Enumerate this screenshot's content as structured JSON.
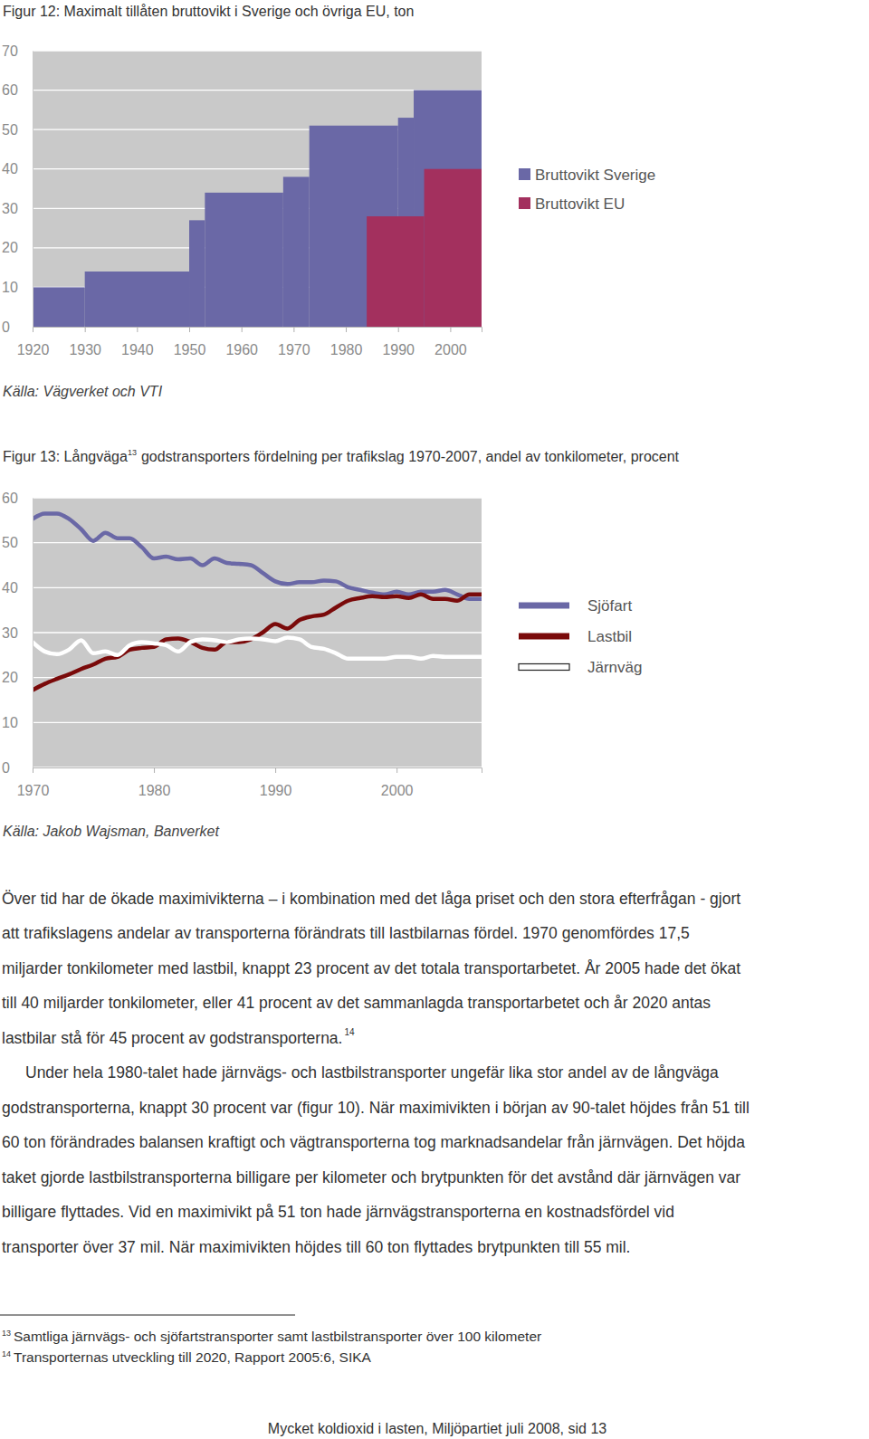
{
  "chart_data": [
    {
      "type": "step",
      "title": "Figur 12: Maximalt tillåten bruttovikt i Sverige och övriga EU, ton",
      "xlim": [
        1920,
        2006
      ],
      "xticks": [
        1920,
        1930,
        1940,
        1950,
        1960,
        1970,
        1980,
        1990,
        2000
      ],
      "ylim": [
        0,
        70
      ],
      "yticks": [
        0,
        10,
        20,
        30,
        40,
        50,
        60,
        70
      ],
      "grid": true,
      "legend": "right",
      "series": [
        {
          "name": "Bruttovikt Sverige",
          "color": "#6a68a6",
          "x": [
            1920,
            1930,
            1950,
            1953,
            1968,
            1973,
            1990,
            1993
          ],
          "values": [
            10,
            14,
            27,
            34,
            38,
            51,
            53,
            60
          ]
        },
        {
          "name": "Bruttovikt EU",
          "color": "#a3305e",
          "x": [
            1984,
            1995
          ],
          "values": [
            28,
            40
          ]
        }
      ],
      "source": "Källa: Vägverket och VTI"
    },
    {
      "type": "line",
      "title": "Figur 13: Långväga",
      "title_note": "13",
      "title_end": "godstransporters fördelning per trafikslag 1970-2007, andel av tonkilometer, procent",
      "x": [
        1970,
        1971,
        1972,
        1973,
        1974,
        1975,
        1976,
        1977,
        1978,
        1979,
        1980,
        1981,
        1982,
        1983,
        1984,
        1985,
        1986,
        1987,
        1988,
        1989,
        1990,
        1991,
        1992,
        1993,
        1994,
        1995,
        1996,
        1997,
        1998,
        1999,
        2000,
        2001,
        2002,
        2003,
        2004,
        2005,
        2006,
        2007
      ],
      "xlim": [
        1970,
        2007
      ],
      "xticks": [
        1970,
        1980,
        1990,
        2000
      ],
      "ylim": [
        0,
        60
      ],
      "yticks": [
        0,
        10,
        20,
        30,
        40,
        50,
        60
      ],
      "grid": true,
      "legend": "right",
      "series": [
        {
          "name": "Sjöfart",
          "color": "#6a68a6",
          "values": [
            55.3,
            56.5,
            56.5,
            55.3,
            53,
            50.4,
            52.2,
            51,
            51,
            49,
            46.5,
            46.9,
            46.3,
            46.5,
            45,
            46.5,
            45.5,
            45.3,
            45,
            43.2,
            41.4,
            40.8,
            41.2,
            41.2,
            41.6,
            41.4,
            40.1,
            39.5,
            38.9,
            38.5,
            39.1,
            38.5,
            39.1,
            39.1,
            39.5,
            38.5,
            37.5,
            37.5
          ]
        },
        {
          "name": "Lastbil",
          "color": "#7a0a0a",
          "values": [
            17.2,
            18.6,
            19.7,
            20.7,
            21.9,
            22.9,
            24.2,
            24.6,
            26.2,
            26.6,
            26.8,
            28.5,
            28.7,
            27.9,
            26.6,
            26.2,
            27.9,
            27.9,
            28.5,
            30.1,
            31.9,
            30.9,
            32.8,
            33.6,
            34,
            35.6,
            37.1,
            37.7,
            38.1,
            37.9,
            38.1,
            37.7,
            38.5,
            37.5,
            37.5,
            37.1,
            38.5,
            38.5
          ]
        },
        {
          "name": "Järnväg",
          "color": "#ffffff",
          "values": [
            27.9,
            25.8,
            25.2,
            26.2,
            28.3,
            25.4,
            25.8,
            25,
            27.2,
            27.9,
            27.6,
            27.2,
            25.8,
            27.9,
            28.5,
            28.3,
            27.9,
            28.5,
            28.7,
            28.5,
            28.1,
            28.9,
            28.5,
            26.8,
            26.4,
            25.4,
            24.2,
            24.2,
            24.2,
            24.2,
            24.6,
            24.6,
            24.2,
            24.8,
            24.6,
            24.6,
            24.6,
            24.6
          ]
        }
      ],
      "source": "Källa: Jakob Wajsman, Banverket"
    }
  ],
  "document": {
    "paragraphs": [
      {
        "lines": [
          "Över tid har de ökade maximivikterna – i kombination med det låga priset och den stora efterfrågan - gjort",
          "att trafikslagens andelar av transporterna förändrats till lastbilarnas fördel. 1970 genomfördes 17,5",
          "miljarder tonkilometer med lastbil, knappt 23 procent av det totala transportarbetet. År 2005 hade det ökat",
          "till 40 miljarder tonkilometer, eller 41 procent av det sammanlagda transportarbetet och år 2020 antas",
          "lastbilar stå för 45 procent av godstransporterna."
        ],
        "note": "14"
      },
      {
        "lines": [
          "Under hela 1980-talet hade järnvägs- och lastbilstransporter ungefär lika stor andel av de långväga",
          "godstransporterna, knappt 30 procent var (figur 10). När maximivikten i början av 90-talet höjdes från 51 till",
          "60 ton förändrades balansen kraftigt och vägtransporterna tog marknadsandelar från järnvägen. Det höjda",
          "taket gjorde lastbilstransporterna billigare per kilometer och brytpunkten för det avstånd där järnvägen var",
          "billigare flyttades. Vid en maximivikt på 51 ton hade järnvägstransporterna en kostnadsfördel vid",
          "transporter över 37 mil. När maximivikten höjdes till 60 ton flyttades brytpunkten till 55 mil."
        ]
      }
    ],
    "footnotes": [
      {
        "mark": "13",
        "text": "Samtliga järnvägs- och sjöfartstransporter samt lastbilstransporter över 100 kilometer"
      },
      {
        "mark": "14",
        "text": "Transporternas utveckling till 2020, Rapport 2005:6, SIKA"
      }
    ],
    "footer": "Mycket koldioxid i lasten, Miljöpartiet juli 2008, sid 13"
  }
}
